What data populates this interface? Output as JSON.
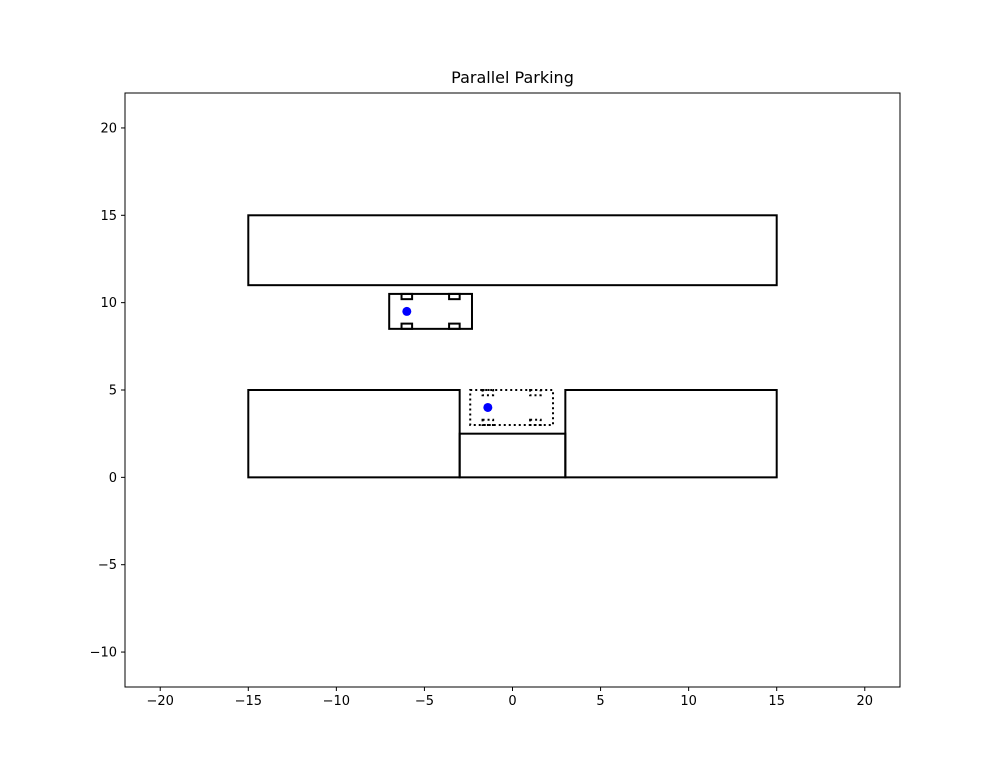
{
  "chart_data": {
    "type": "scatter",
    "title": "Parallel Parking",
    "xlabel": "",
    "ylabel": "",
    "xlim": [
      -22,
      22
    ],
    "ylim": [
      -12,
      22
    ],
    "xticks": [
      -20,
      -15,
      -10,
      -5,
      0,
      5,
      10,
      15,
      20
    ],
    "yticks": [
      -10,
      -5,
      0,
      5,
      10,
      15,
      20
    ],
    "xtick_labels": [
      "−20",
      "−15",
      "−10",
      "−5",
      "0",
      "5",
      "10",
      "15",
      "20"
    ],
    "ytick_labels": [
      "−10",
      "−5",
      "0",
      "5",
      "10",
      "15",
      "20"
    ],
    "grid": false,
    "colors": {
      "point": "#0000ff",
      "outline": "#000000"
    },
    "obstacles": [
      {
        "name": "top-block",
        "x0": -15,
        "y0": 11,
        "x1": 15,
        "y1": 15
      },
      {
        "name": "left-block",
        "x0": -15,
        "y0": 0,
        "x1": -3,
        "y1": 5
      },
      {
        "name": "right-block",
        "x0": 3,
        "y0": 0,
        "x1": 15,
        "y1": 5
      },
      {
        "name": "curb-block",
        "x0": -3,
        "y0": 0,
        "x1": 3,
        "y1": 2.5
      }
    ],
    "cars": [
      {
        "name": "current-car",
        "style": "solid",
        "body": {
          "x0": -7,
          "y0": 8.5,
          "x1": -2.3,
          "y1": 10.5
        },
        "wheels": [
          {
            "x0": -6.3,
            "y0": 10.2,
            "x1": -5.7,
            "y1": 10.5
          },
          {
            "x0": -3.6,
            "y0": 10.2,
            "x1": -3.0,
            "y1": 10.5
          },
          {
            "x0": -6.3,
            "y0": 8.5,
            "x1": -5.7,
            "y1": 8.8
          },
          {
            "x0": -3.6,
            "y0": 8.5,
            "x1": -3.0,
            "y1": 8.8
          }
        ]
      },
      {
        "name": "goal-car",
        "style": "dotted",
        "body": {
          "x0": -2.4,
          "y0": 3,
          "x1": 2.3,
          "y1": 5
        },
        "wheels": [
          {
            "x0": -1.7,
            "y0": 4.7,
            "x1": -1.1,
            "y1": 5.0
          },
          {
            "x0": 1.0,
            "y0": 4.7,
            "x1": 1.6,
            "y1": 5.0
          },
          {
            "x0": -1.7,
            "y0": 3.0,
            "x1": -1.1,
            "y1": 3.3
          },
          {
            "x0": 1.0,
            "y0": 3.0,
            "x1": 1.6,
            "y1": 3.3
          }
        ]
      }
    ],
    "points": [
      {
        "name": "current-position",
        "x": -6,
        "y": 9.5
      },
      {
        "name": "goal-position",
        "x": -1.4,
        "y": 4
      }
    ]
  }
}
